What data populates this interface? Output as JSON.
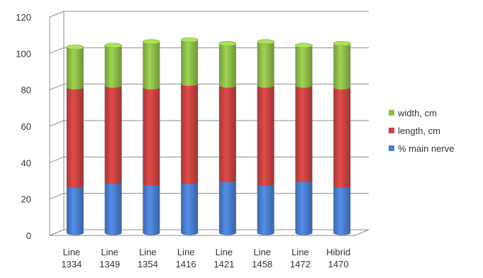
{
  "chart_data": {
    "type": "bar",
    "stacked": true,
    "three_d": true,
    "categories": [
      [
        "Line",
        "1334"
      ],
      [
        "Line",
        "1349"
      ],
      [
        "Line",
        "1354"
      ],
      [
        "Line",
        "1416"
      ],
      [
        "Line",
        "1421"
      ],
      [
        "Line",
        "1458"
      ],
      [
        "Line",
        "1472"
      ],
      [
        "Hibrid",
        "1470"
      ]
    ],
    "series": [
      {
        "name": "% main nerve",
        "color": "#4a7fcf",
        "values": [
          26,
          28,
          27,
          28,
          29,
          27,
          29,
          26
        ]
      },
      {
        "name": "length, cm",
        "color": "#c94442",
        "values": [
          54,
          53,
          53,
          54,
          52,
          54,
          52,
          54
        ]
      },
      {
        "name": "width, cm",
        "color": "#8fbd4a",
        "values": [
          22,
          22,
          25,
          24,
          23,
          24,
          22,
          24
        ]
      }
    ],
    "ylim": [
      0,
      120
    ],
    "yticks": [
      0,
      20,
      40,
      60,
      80,
      100,
      120
    ],
    "grid": true,
    "legend_position": "right",
    "legend_order": [
      "width, cm",
      "length, cm",
      "% main nerve"
    ]
  }
}
